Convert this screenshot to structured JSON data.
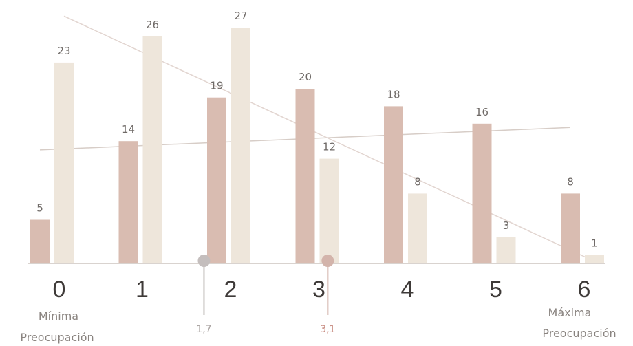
{
  "chart_data": {
    "type": "bar",
    "title": "",
    "xlabel": "",
    "ylabel": "",
    "categories": [
      "0",
      "1",
      "2",
      "3",
      "4",
      "5",
      "6"
    ],
    "series": [
      {
        "values": [
          5,
          14,
          19,
          20,
          18,
          16,
          8
        ],
        "color": "#d9bcb1"
      },
      {
        "values": [
          23,
          26,
          27,
          12,
          8,
          3,
          1
        ],
        "color": "#eee6db"
      }
    ],
    "ylim": [
      0,
      29
    ],
    "grid": false,
    "legend": "none",
    "trend_lines": [
      {
        "series_index": 0,
        "color": "#d7cdc7"
      },
      {
        "series_index": 1,
        "color": "#e2d5d0"
      }
    ],
    "markers": [
      {
        "x": 1.7,
        "label": "1,7",
        "color": "#c4bebd",
        "text_color": "#a9a3a1"
      },
      {
        "x": 3.1,
        "label": "3,1",
        "color": "#d3b4ab",
        "text_color": "#c98f85"
      }
    ],
    "axis_end_labels": {
      "min_line1": "Mínima",
      "min_line2": "Preocupación",
      "max_line1": "Máxima",
      "max_line2": "Preocupación"
    }
  }
}
